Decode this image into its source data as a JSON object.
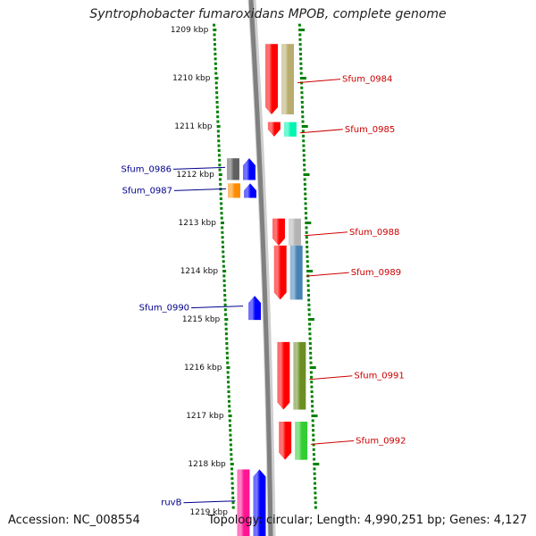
{
  "title": "Syntrophobacter fumaroxidans MPOB, complete genome",
  "footer": {
    "accession": "Accession: NC_008554",
    "summary": "Topology: circular; Length: 4,990,251 bp; Genes: 4,127"
  },
  "scale_unit": "kbp",
  "ruler_ticks": [
    {
      "kbp": 1209,
      "label": "1209 kbp"
    },
    {
      "kbp": 1210,
      "label": "1210 kbp"
    },
    {
      "kbp": 1211,
      "label": "1211 kbp"
    },
    {
      "kbp": 1212,
      "label": "1212 kbp"
    },
    {
      "kbp": 1213,
      "label": "1213 kbp"
    },
    {
      "kbp": 1214,
      "label": "1214 kbp"
    },
    {
      "kbp": 1215,
      "label": "1215 kbp"
    },
    {
      "kbp": 1216,
      "label": "1216 kbp"
    },
    {
      "kbp": 1217,
      "label": "1217 kbp"
    },
    {
      "kbp": 1218,
      "label": "1218 kbp"
    },
    {
      "kbp": 1219,
      "label": "1219 kbp"
    }
  ],
  "genes": [
    {
      "name": "Sfum_0984",
      "strand": "+",
      "start_kbp": 1209.3,
      "end_kbp": 1210.76,
      "cds_color": "#ff0000",
      "cog_color": "#b8ac6e"
    },
    {
      "name": "Sfum_0985",
      "strand": "+",
      "start_kbp": 1210.92,
      "end_kbp": 1211.22,
      "cds_color": "#ff0000",
      "cog_color": "#00f5b0"
    },
    {
      "name": "Sfum_0986",
      "strand": "-",
      "start_kbp": 1211.67,
      "end_kbp": 1212.12,
      "cds_color": "#0000ff",
      "cog_color": "#606060"
    },
    {
      "name": "Sfum_0987",
      "strand": "-",
      "start_kbp": 1212.19,
      "end_kbp": 1212.49,
      "cds_color": "#0000ff",
      "cog_color": "#ff8c00"
    },
    {
      "name": "Sfum_0988",
      "strand": "+",
      "start_kbp": 1212.92,
      "end_kbp": 1213.48,
      "cds_color": "#ff0000",
      "cog_color": "#b4b4b4"
    },
    {
      "name": "Sfum_0989",
      "strand": "+",
      "start_kbp": 1213.48,
      "end_kbp": 1214.6,
      "cds_color": "#ff0000",
      "cog_color": "#4682b4"
    },
    {
      "name": "Sfum_0990",
      "strand": "-",
      "start_kbp": 1214.52,
      "end_kbp": 1215.02,
      "cds_color": "#0000ff",
      "cog_color": null
    },
    {
      "name": "Sfum_0991",
      "strand": "+",
      "start_kbp": 1215.48,
      "end_kbp": 1216.88,
      "cds_color": "#ff0000",
      "cog_color": "#6b8e23"
    },
    {
      "name": "Sfum_0992",
      "strand": "+",
      "start_kbp": 1217.13,
      "end_kbp": 1217.92,
      "cds_color": "#ff0000",
      "cog_color": "#32cd32"
    },
    {
      "name": "ruvB",
      "strand": "-",
      "start_kbp": 1218.12,
      "end_kbp": 1219.5,
      "cds_color": "#0000ff",
      "cog_color": "#ff1493"
    }
  ],
  "colors": {
    "plus_label": "#cc0000",
    "minus_label": "#00008b",
    "ruler_dots": "#008000",
    "backbone": "#808080",
    "ruler_text": "#111111"
  }
}
